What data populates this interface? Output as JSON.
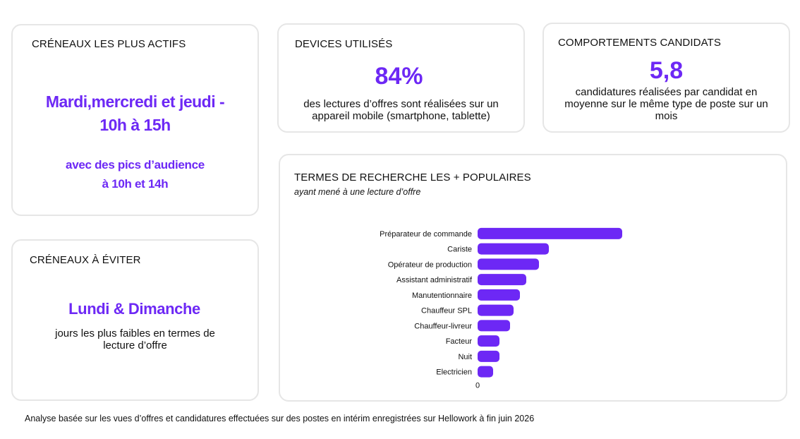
{
  "colors": {
    "accent": "#6d28f5",
    "border": "#e6e6e6"
  },
  "peak_slots": {
    "title": "CRÉNEAUX LES PLUS ACTIFS",
    "headline_line1": "Mardi,mercredi et jeudi -",
    "headline_line2": "10h à 15h",
    "peaks_line1": "avec des pics d’audience",
    "peaks_line2": "à 10h et 14h"
  },
  "avoid_slots": {
    "title": "CRÉNEAUX À ÉVITER",
    "headline": "Lundi & Dimanche",
    "desc_line1": "jours les plus faibles en termes de",
    "desc_line2": "lecture d’offre"
  },
  "devices": {
    "title": "DEVICES UTILISÉS",
    "value": "84%",
    "desc_line1": "des lectures d’offres sont réalisées sur un",
    "desc_line2": "appareil mobile (smartphone, tablette)"
  },
  "behaviour": {
    "title": "COMPORTEMENTS CANDIDATS",
    "value": "5,8",
    "desc_line1": "candidatures réalisées par candidat en",
    "desc_line2": "moyenne sur le même type de poste sur un",
    "desc_line3": "mois"
  },
  "search_terms": {
    "title": "TERMES DE RECHERCHE LES + POPULAIRES",
    "subtitle": "ayant mené à une lecture d’offre"
  },
  "chart_data": {
    "type": "bar",
    "orientation": "horizontal",
    "categories": [
      "Préparateur de commande",
      "Cariste",
      "Opérateur de production",
      "Assistant administratif",
      "Manutentionnaire",
      "Chauffeur SPL",
      "Chauffeur-livreur",
      "Facteur",
      "Nuit",
      "Electricien"
    ],
    "values": [
      205,
      101,
      87,
      69,
      60,
      51,
      46,
      31,
      31,
      22
    ],
    "x_tick_start": "0",
    "xlim": [
      0,
      370
    ],
    "grid": false,
    "color": "#6d28f5"
  },
  "footnote": "Analyse basée sur les vues d’offres et candidatures effectuées sur des postes en intérim enregistrées sur Hellowork à fin juin 2026"
}
